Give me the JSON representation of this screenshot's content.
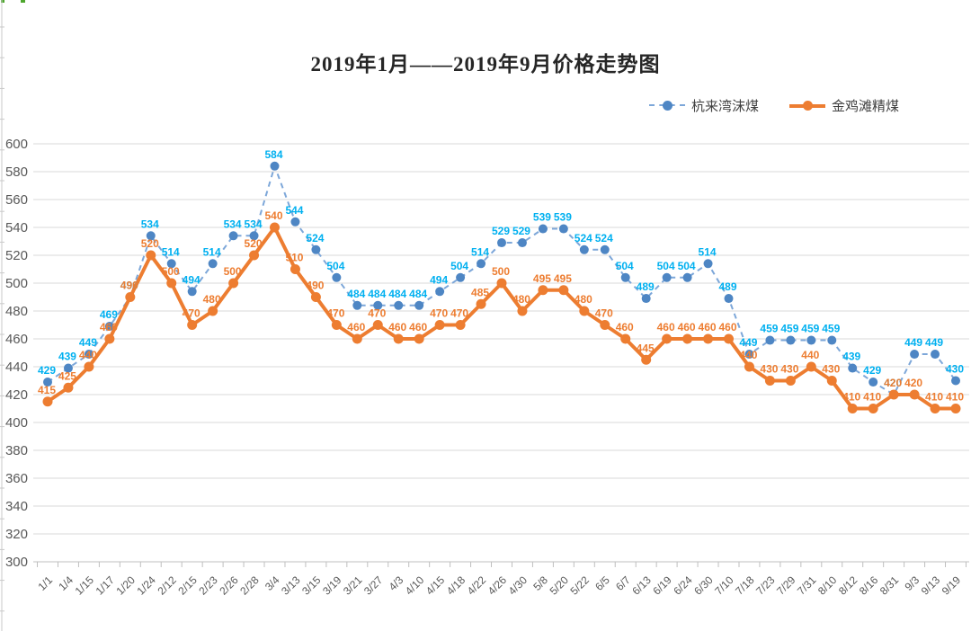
{
  "chart_data": {
    "type": "line",
    "title": "2019年1月——2019年9月价格走势图",
    "categories": [
      "1/1",
      "1/4",
      "1/15",
      "1/17",
      "1/20",
      "1/24",
      "2/12",
      "2/15",
      "2/23",
      "2/26",
      "2/28",
      "3/4",
      "3/13",
      "3/15",
      "3/19",
      "3/21",
      "3/27",
      "4/3",
      "4/10",
      "4/15",
      "4/18",
      "4/22",
      "4/26",
      "4/30",
      "5/8",
      "5/20",
      "5/22",
      "6/5",
      "6/7",
      "6/13",
      "6/19",
      "6/24",
      "6/30",
      "7/10",
      "7/18",
      "7/23",
      "7/29",
      "7/31",
      "8/10",
      "8/12",
      "8/16",
      "8/31",
      "9/3",
      "9/13",
      "9/19"
    ],
    "series": [
      {
        "name": "杭来湾沫煤",
        "style": "dashed",
        "line_color": "#7da7d9",
        "marker_color": "#4e86c4",
        "label_color": "#00b0f0",
        "values": [
          429,
          439,
          449,
          469,
          490,
          534,
          514,
          494,
          514,
          534,
          534,
          584,
          544,
          524,
          504,
          484,
          484,
          484,
          484,
          494,
          504,
          514,
          529,
          529,
          539,
          539,
          524,
          524,
          504,
          489,
          504,
          504,
          514,
          489,
          449,
          459,
          459,
          459,
          459,
          439,
          429,
          420,
          449,
          449,
          430
        ]
      },
      {
        "name": "金鸡滩精煤",
        "style": "solid",
        "line_color": "#ed7d31",
        "marker_color": "#ed7d31",
        "label_color": "#ed7d31",
        "values": [
          415,
          425,
          440,
          460,
          490,
          520,
          500,
          470,
          480,
          500,
          520,
          540,
          510,
          490,
          470,
          460,
          470,
          460,
          460,
          470,
          470,
          485,
          500,
          480,
          495,
          495,
          480,
          470,
          460,
          445,
          460,
          460,
          460,
          460,
          440,
          430,
          430,
          440,
          430,
          410,
          410,
          420,
          420,
          410,
          410
        ]
      }
    ],
    "ylim": [
      300,
      600
    ],
    "ytick_step": 20,
    "grid": true,
    "data_labels": true,
    "legend_position": "top-right",
    "axis_color": "#bfbfbf",
    "grid_color": "#d9d9d9",
    "tick_label_color": "#595959"
  }
}
